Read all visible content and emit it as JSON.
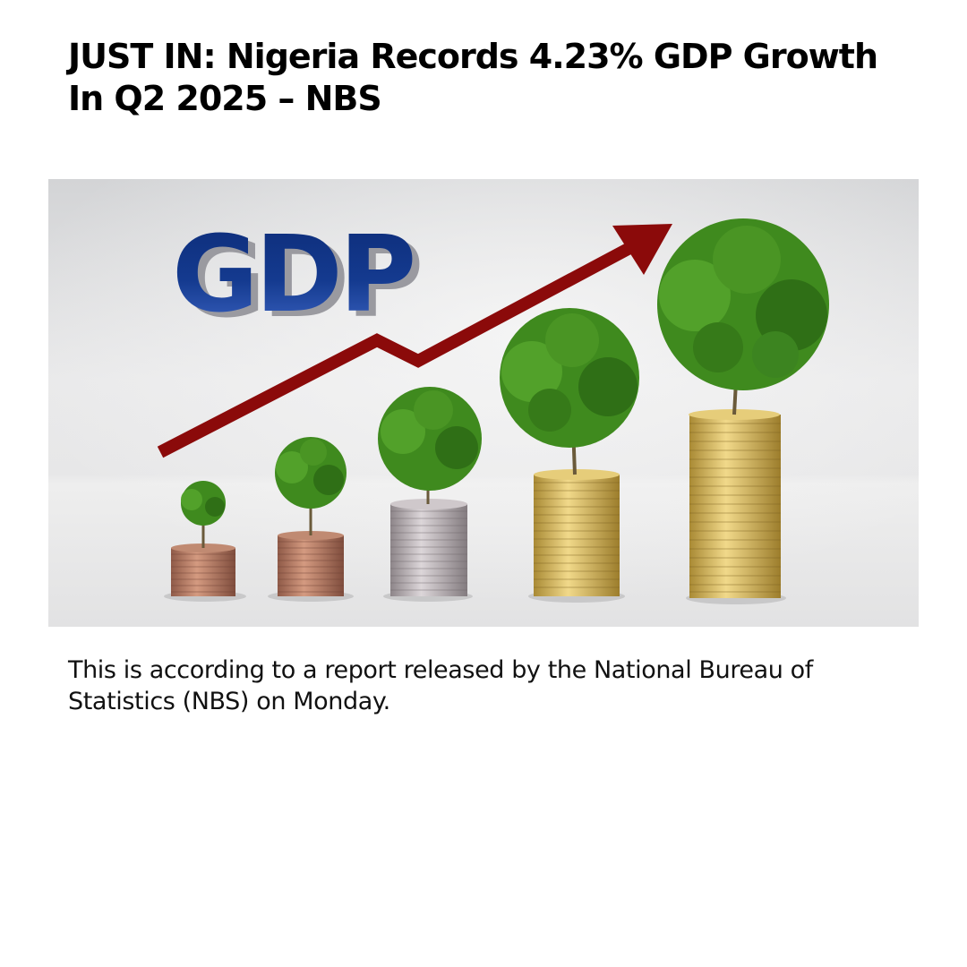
{
  "article": {
    "headline": "JUST IN: Nigeria Records 4.23% GDP Growth In Q2 2025 – NBS",
    "body": "This is according to a report released by the National Bureau of Statistics (NBS) on Monday."
  },
  "hero_image": {
    "logo_text": "GDP",
    "colors": {
      "logo_blue": "#12358a",
      "arrow_red": "#8b0a0a",
      "leaf_green": "#3f8a1e",
      "copper": "#b77a62",
      "silver": "#b8b1b5",
      "gold": "#d9bb5e"
    }
  }
}
